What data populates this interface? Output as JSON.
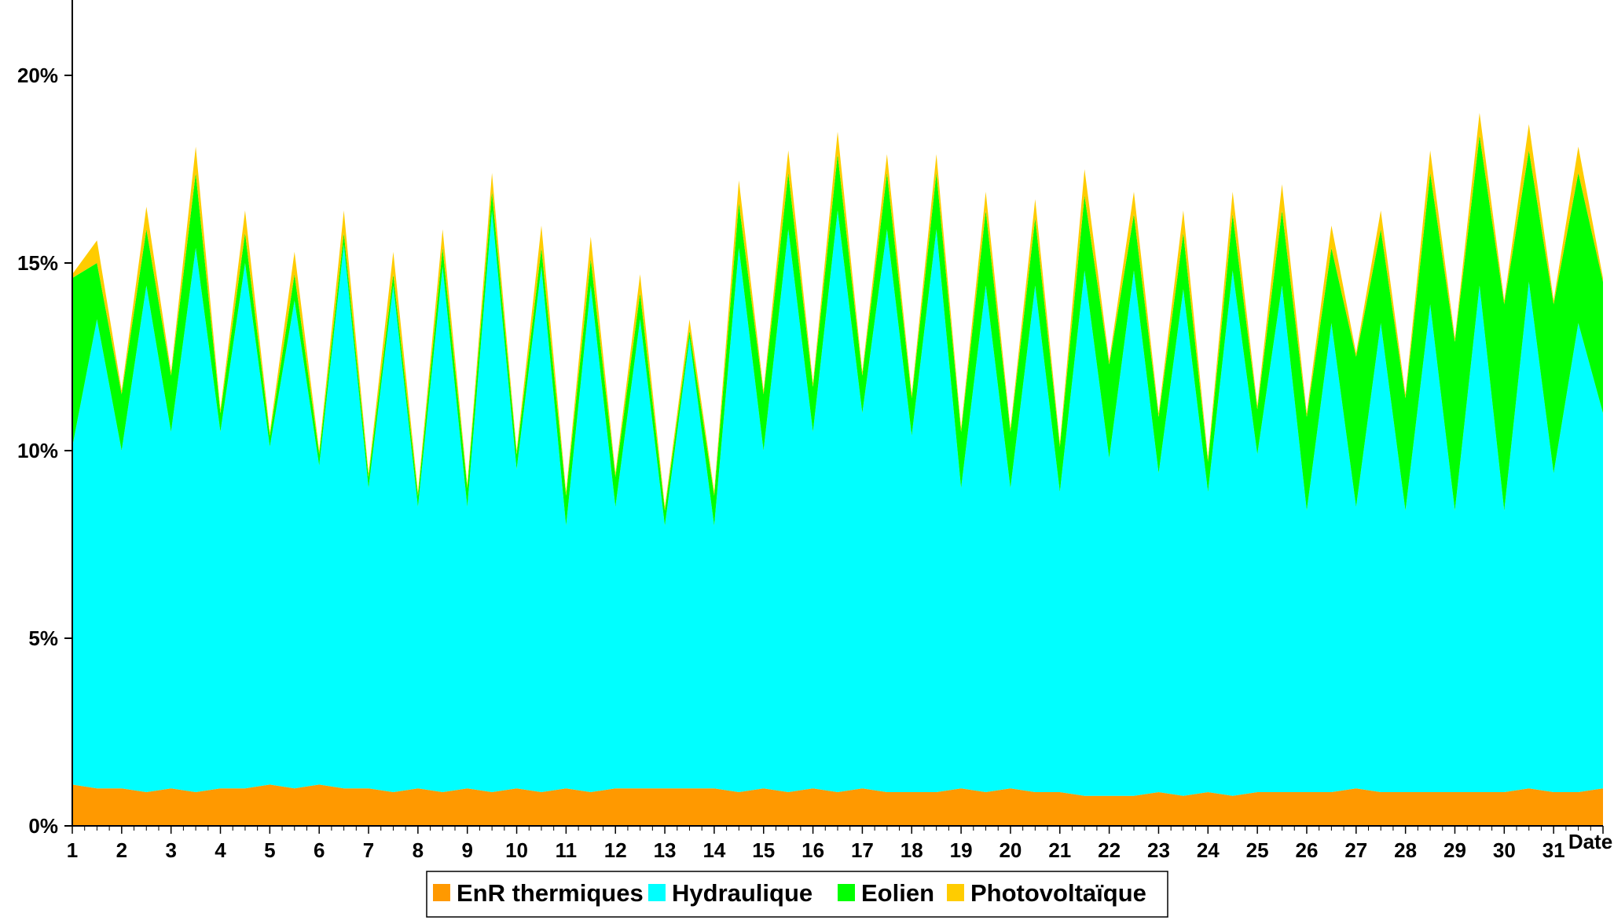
{
  "chart_data": {
    "type": "area",
    "stacked": true,
    "title": "",
    "xlabel": "Date",
    "ylabel": "",
    "x_ticks": [
      "1",
      "2",
      "3",
      "4",
      "5",
      "6",
      "7",
      "8",
      "9",
      "10",
      "11",
      "12",
      "13",
      "14",
      "15",
      "16",
      "17",
      "18",
      "19",
      "20",
      "21",
      "22",
      "23",
      "24",
      "25",
      "26",
      "27",
      "28",
      "29",
      "30",
      "31"
    ],
    "x_range": [
      1,
      32
    ],
    "y_ticks": [
      "0%",
      "5%",
      "10%",
      "15%",
      "20%"
    ],
    "ylim": [
      0,
      22
    ],
    "grid": false,
    "legend_position": "bottom",
    "series": [
      {
        "name": "EnR thermiques",
        "color": "#ff9900",
        "x": [
          1,
          1.5,
          2,
          2.5,
          3,
          3.5,
          4,
          4.5,
          5,
          5.5,
          6,
          6.5,
          7,
          7.5,
          8,
          8.5,
          9,
          9.5,
          10,
          10.5,
          11,
          11.5,
          12,
          12.5,
          13,
          13.5,
          14,
          14.5,
          15,
          15.5,
          16,
          16.5,
          17,
          17.5,
          18,
          18.5,
          19,
          19.5,
          20,
          20.5,
          21,
          21.5,
          22,
          22.5,
          23,
          23.5,
          24,
          24.5,
          25,
          25.5,
          26,
          26.5,
          27,
          27.5,
          28,
          28.5,
          29,
          29.5,
          30,
          30.5,
          31,
          31.5,
          32
        ],
        "values": [
          1.1,
          1.0,
          1.0,
          0.9,
          1.0,
          0.9,
          1.0,
          1.0,
          1.1,
          1.0,
          1.1,
          1.0,
          1.0,
          0.9,
          1.0,
          0.9,
          1.0,
          0.9,
          1.0,
          0.9,
          1.0,
          0.9,
          1.0,
          1.0,
          1.0,
          1.0,
          1.0,
          0.9,
          1.0,
          0.9,
          1.0,
          0.9,
          1.0,
          0.9,
          0.9,
          0.9,
          1.0,
          0.9,
          1.0,
          0.9,
          0.9,
          0.8,
          0.8,
          0.8,
          0.9,
          0.8,
          0.9,
          0.8,
          0.9,
          0.9,
          0.9,
          0.9,
          1.0,
          0.9,
          0.9,
          0.9,
          0.9,
          0.9,
          0.9,
          1.0,
          0.9,
          0.9,
          1.0
        ]
      },
      {
        "name": "Hydraulique",
        "color": "#00ffff",
        "x": [
          1,
          1.5,
          2,
          2.5,
          3,
          3.5,
          4,
          4.5,
          5,
          5.5,
          6,
          6.5,
          7,
          7.5,
          8,
          8.5,
          9,
          9.5,
          10,
          10.5,
          11,
          11.5,
          12,
          12.5,
          13,
          13.5,
          14,
          14.5,
          15,
          15.5,
          16,
          16.5,
          17,
          17.5,
          18,
          18.5,
          19,
          19.5,
          20,
          20.5,
          21,
          21.5,
          22,
          22.5,
          23,
          23.5,
          24,
          24.5,
          25,
          25.5,
          26,
          26.5,
          27,
          27.5,
          28,
          28.5,
          29,
          29.5,
          30,
          30.5,
          31,
          31.5,
          32
        ],
        "values": [
          9.0,
          12.5,
          9.0,
          13.5,
          9.5,
          14.5,
          9.5,
          14.0,
          9.0,
          13.0,
          8.5,
          14.5,
          8.0,
          13.5,
          7.5,
          14.0,
          7.5,
          15.5,
          8.5,
          14.0,
          7.0,
          13.5,
          7.5,
          12.5,
          7.0,
          12.0,
          7.0,
          14.5,
          9.0,
          15.0,
          9.5,
          15.5,
          10.0,
          15.0,
          9.5,
          15.0,
          8.0,
          13.5,
          8.0,
          13.5,
          8.0,
          14.0,
          9.0,
          14.0,
          8.5,
          13.5,
          8.0,
          14.0,
          9.0,
          13.5,
          7.5,
          12.5,
          7.5,
          12.5,
          7.5,
          13.0,
          7.5,
          13.5,
          7.5,
          13.5,
          8.5,
          12.5,
          10.0
        ]
      },
      {
        "name": "Eolien",
        "color": "#00ff00",
        "x": [
          1,
          1.5,
          2,
          2.5,
          3,
          3.5,
          4,
          4.5,
          5,
          5.5,
          6,
          6.5,
          7,
          7.5,
          8,
          8.5,
          9,
          9.5,
          10,
          10.5,
          11,
          11.5,
          12,
          12.5,
          13,
          13.5,
          14,
          14.5,
          15,
          15.5,
          16,
          16.5,
          17,
          17.5,
          18,
          18.5,
          19,
          19.5,
          20,
          20.5,
          21,
          21.5,
          22,
          22.5,
          23,
          23.5,
          24,
          24.5,
          25,
          25.5,
          26,
          26.5,
          27,
          27.5,
          28,
          28.5,
          29,
          29.5,
          30,
          30.5,
          31,
          31.5,
          32
        ],
        "values": [
          4.5,
          1.5,
          1.5,
          1.5,
          1.5,
          2.0,
          0.5,
          0.8,
          0.3,
          0.7,
          0.3,
          0.3,
          0.3,
          0.3,
          0.3,
          0.5,
          0.5,
          0.5,
          0.4,
          0.5,
          0.8,
          0.7,
          0.8,
          0.7,
          0.4,
          0.2,
          0.8,
          1.2,
          1.5,
          1.5,
          1.2,
          1.5,
          1.0,
          1.5,
          1.0,
          1.5,
          1.5,
          2.0,
          1.5,
          1.8,
          1.2,
          2.0,
          2.5,
          1.5,
          1.5,
          1.5,
          0.8,
          1.5,
          1.2,
          2.0,
          2.5,
          2.0,
          4.0,
          2.5,
          3.0,
          3.5,
          4.5,
          4.0,
          5.5,
          3.5,
          4.5,
          4.0,
          3.5
        ]
      },
      {
        "name": "Photovoltaïque",
        "color": "#ffcc00",
        "x": [
          1,
          1.5,
          2,
          2.5,
          3,
          3.5,
          4,
          4.5,
          5,
          5.5,
          6,
          6.5,
          7,
          7.5,
          8,
          8.5,
          9,
          9.5,
          10,
          10.5,
          11,
          11.5,
          12,
          12.5,
          13,
          13.5,
          14,
          14.5,
          15,
          15.5,
          16,
          16.5,
          17,
          17.5,
          18,
          18.5,
          19,
          19.5,
          20,
          20.5,
          21,
          21.5,
          22,
          22.5,
          23,
          23.5,
          24,
          24.5,
          25,
          25.5,
          26,
          26.5,
          27,
          27.5,
          28,
          28.5,
          29,
          29.5,
          30,
          30.5,
          31,
          31.5,
          32
        ],
        "values": [
          0.1,
          0.6,
          0.1,
          0.6,
          0.1,
          0.7,
          0.1,
          0.6,
          0.1,
          0.6,
          0.1,
          0.6,
          0.1,
          0.6,
          0.1,
          0.5,
          0.1,
          0.5,
          0.1,
          0.6,
          0.1,
          0.6,
          0.1,
          0.5,
          0.1,
          0.3,
          0.1,
          0.6,
          0.1,
          0.6,
          0.1,
          0.6,
          0.1,
          0.5,
          0.1,
          0.5,
          0.1,
          0.5,
          0.1,
          0.5,
          0.1,
          0.7,
          0.1,
          0.6,
          0.1,
          0.6,
          0.1,
          0.6,
          0.1,
          0.7,
          0.1,
          0.6,
          0.1,
          0.5,
          0.1,
          0.6,
          0.1,
          0.6,
          0.1,
          0.7,
          0.1,
          0.7,
          0.1
        ]
      }
    ]
  }
}
